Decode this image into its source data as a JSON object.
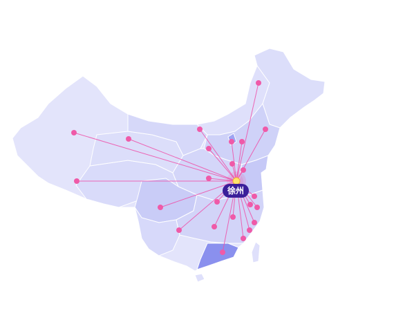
{
  "map": {
    "hub_label": "徐州",
    "colors": {
      "land_light": "#e3e4fb",
      "land_mid": "#cfd2f8",
      "land_highlight": "#9ea4f2",
      "land_strong": "#8a90ee",
      "border": "#ffffff",
      "flow_line": "#ef4fa8",
      "dot": "#ef5aa8",
      "hub_dot": "#ffe46b",
      "pill": "#3a1f9a"
    },
    "icons": [
      "location-dot-icon"
    ]
  }
}
